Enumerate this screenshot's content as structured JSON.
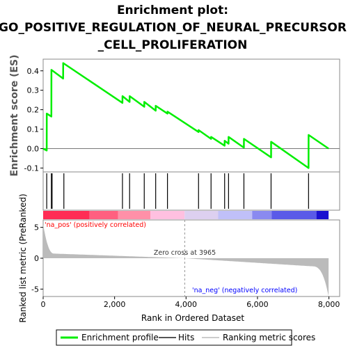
{
  "chart_data": {
    "type": "line",
    "title_lines": [
      "Enrichment plot:",
      "GO_POSITIVE_REGULATION_OF_NEURAL_PRECURSOR",
      "_CELL_PROLIFERATION"
    ],
    "es_panel": {
      "ylabel": "Enrichment score (ES)",
      "ylim": [
        -0.12,
        0.46
      ],
      "yticks": [
        -0.1,
        0.0,
        0.1,
        0.2,
        0.3,
        0.4
      ],
      "ytick_labels": [
        "-0.1",
        "0.0",
        "0.1",
        "0.2",
        "0.3",
        "0.4"
      ],
      "series": [
        {
          "name": "Enrichment profile",
          "color": "#00ee00",
          "x": [
            0,
            100,
            101,
            230,
            231,
            560,
            561,
            2220,
            2221,
            2420,
            2421,
            2830,
            2831,
            3150,
            3151,
            3480,
            3481,
            4350,
            4351,
            4700,
            4701,
            5080,
            5081,
            5190,
            5191,
            5620,
            5621,
            6380,
            6381,
            7430,
            7431,
            7990
          ],
          "y": [
            0.0,
            -0.01,
            0.18,
            0.165,
            0.405,
            0.36,
            0.44,
            0.235,
            0.27,
            0.24,
            0.27,
            0.215,
            0.24,
            0.195,
            0.22,
            0.18,
            0.19,
            0.085,
            0.095,
            0.05,
            0.06,
            0.015,
            0.04,
            0.025,
            0.06,
            0.005,
            0.05,
            -0.045,
            0.035,
            -0.1,
            0.07,
            0.0
          ]
        }
      ]
    },
    "hits": {
      "name": "Hits",
      "positions": [
        100,
        230,
        250,
        580,
        2220,
        2420,
        2830,
        3150,
        3480,
        4350,
        4700,
        5080,
        5190,
        5620,
        6380,
        7430
      ]
    },
    "ranked_panel": {
      "ylabel": "Ranked list metric (PreRanked)",
      "ylim": [
        -6.2,
        6.2
      ],
      "yticks": [
        -5,
        0,
        5
      ],
      "ytick_labels": [
        "-5",
        "0",
        "5"
      ],
      "fill_color": "#bbbbbb",
      "series_name": "Ranking metric scores",
      "zero_cross_rank": 3965,
      "zero_cross_label": "Zero cross at 3965",
      "pos_label": "'na_pos' (positively correlated)",
      "neg_label": "'na_neg' (negatively correlated)",
      "pos_color": "#ff0000",
      "neg_color": "#0000ff"
    },
    "xaxis": {
      "label": "Rank in Ordered Dataset",
      "xlim": [
        0,
        8300
      ],
      "ticks": [
        0,
        2000,
        4000,
        6000,
        8000
      ],
      "tick_labels": [
        "0",
        "2,000",
        "4,000",
        "6,000",
        "8,000"
      ]
    },
    "colorbar": {
      "segments": [
        {
          "start": 0,
          "end": 1300,
          "color": "#ff2d55"
        },
        {
          "start": 1300,
          "end": 2100,
          "color": "#ff6080"
        },
        {
          "start": 2100,
          "end": 3000,
          "color": "#ff90a8"
        },
        {
          "start": 3000,
          "end": 3960,
          "color": "#ffc0e0"
        },
        {
          "start": 3960,
          "end": 4900,
          "color": "#ddd0f0"
        },
        {
          "start": 4900,
          "end": 5850,
          "color": "#c0c0f8"
        },
        {
          "start": 5850,
          "end": 6400,
          "color": "#8a8af0"
        },
        {
          "start": 6400,
          "end": 7650,
          "color": "#5a5ae8"
        },
        {
          "start": 7650,
          "end": 7990,
          "color": "#1a10d0"
        }
      ]
    },
    "legend": {
      "items": [
        {
          "label": "Enrichment profile",
          "color": "#00ee00"
        },
        {
          "label": "Hits",
          "color": "#555555"
        },
        {
          "label": "Ranking metric scores",
          "color": "#bbbbbb"
        }
      ]
    }
  }
}
